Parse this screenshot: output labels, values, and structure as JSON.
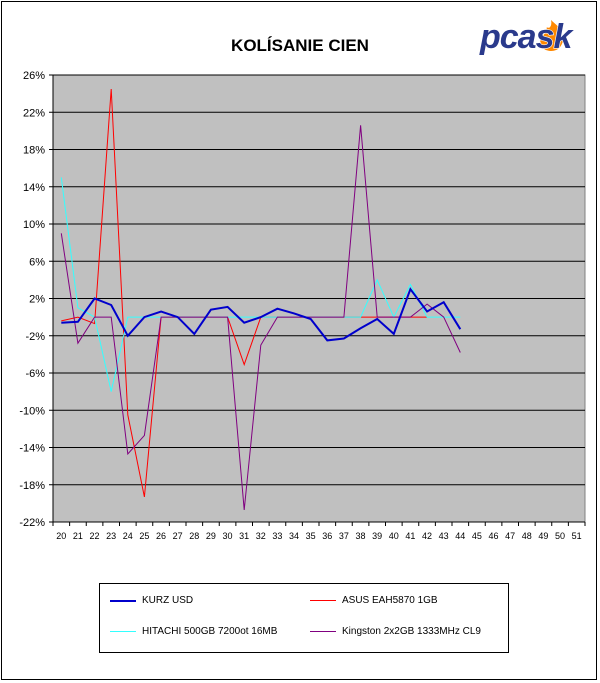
{
  "chart_data": {
    "type": "line",
    "title": "KOLÍSANIE CIEN",
    "xlabel": "",
    "ylabel": "",
    "x": [
      20,
      21,
      22,
      23,
      24,
      25,
      26,
      27,
      28,
      29,
      30,
      31,
      32,
      33,
      34,
      35,
      36,
      37,
      38,
      39,
      40,
      41,
      42,
      43,
      44,
      45,
      46,
      47,
      48,
      49,
      50,
      51
    ],
    "ylim": [
      -22,
      26
    ],
    "yticks": [
      26,
      22,
      18,
      14,
      10,
      6,
      2,
      -2,
      -6,
      -10,
      -14,
      -18,
      -22
    ],
    "ytick_labels": [
      "26%",
      "22%",
      "18%",
      "14%",
      "10%",
      "6%",
      "2%",
      "-2%",
      "-6%",
      "-10%",
      "-14%",
      "-18%",
      "-22%"
    ],
    "grid": true,
    "plot_background": "#C0C0C0",
    "legend_position": "bottom",
    "series": [
      {
        "name": "KURZ USD",
        "color": "#0000CC",
        "width": 2,
        "x": [
          20,
          21,
          22,
          23,
          24,
          25,
          26,
          27,
          28,
          29,
          30,
          31,
          32,
          33,
          34,
          35,
          36,
          37,
          38,
          39,
          40,
          41,
          42,
          43,
          44
        ],
        "values": [
          -0.6,
          -0.5,
          2.0,
          1.3,
          -2.0,
          0.0,
          0.6,
          0.0,
          -1.8,
          0.8,
          1.1,
          -0.6,
          0.0,
          0.9,
          0.4,
          -0.2,
          -2.5,
          -2.3,
          -1.2,
          -0.2,
          -1.8,
          3.0,
          0.6,
          1.6,
          -1.3
        ]
      },
      {
        "name": "ASUS EAH5870 1GB",
        "color": "#FF0000",
        "width": 1,
        "x": [
          20,
          21,
          22,
          23,
          24,
          25,
          26,
          27,
          28,
          29,
          30,
          31,
          32,
          33,
          34,
          35,
          36,
          37,
          38,
          39,
          40,
          41,
          42
        ],
        "values": [
          -0.4,
          0.0,
          -0.7,
          24.5,
          -10.5,
          -19.3,
          0.0,
          0.0,
          0.0,
          0.0,
          0.0,
          -5.1,
          0.0,
          0.0,
          0.0,
          0.0,
          0.0,
          0.0,
          0.0,
          0.0,
          0.0,
          0.0,
          0.0
        ]
      },
      {
        "name": "HITACHI 500GB 7200ot 16MB",
        "color": "#33FFFF",
        "width": 1,
        "x": [
          20,
          21,
          22,
          23,
          24,
          25,
          26,
          27,
          28,
          29,
          30,
          31,
          32,
          33,
          34,
          35,
          36,
          37,
          38,
          39,
          40,
          41,
          42,
          43,
          44
        ],
        "values": [
          15.0,
          1.0,
          0.0,
          -8.0,
          0.0,
          0.0,
          0.0,
          0.0,
          0.0,
          0.0,
          0.0,
          0.0,
          0.0,
          0.0,
          0.0,
          0.0,
          0.0,
          0.0,
          0.0,
          4.0,
          0.0,
          3.5,
          0.0,
          0.0,
          0.0
        ]
      },
      {
        "name": "Kingston 2x2GB 1333MHz CL9",
        "color": "#800080",
        "width": 1,
        "x": [
          20,
          21,
          22,
          23,
          24,
          25,
          26,
          27,
          28,
          29,
          30,
          31,
          32,
          33,
          34,
          35,
          36,
          37,
          38,
          39,
          40,
          41,
          42,
          43,
          44
        ],
        "values": [
          9.0,
          -2.8,
          0.0,
          0.0,
          -14.7,
          -12.7,
          0.0,
          0.0,
          0.0,
          0.0,
          0.0,
          -20.7,
          -3.0,
          0.0,
          0.0,
          0.0,
          0.0,
          0.0,
          20.6,
          0.0,
          0.0,
          0.0,
          1.4,
          0.0,
          -3.8
        ]
      }
    ]
  },
  "logo": {
    "text": "pcask",
    "text_color": "#2A3A8C",
    "flame_color": "#FF8800"
  }
}
